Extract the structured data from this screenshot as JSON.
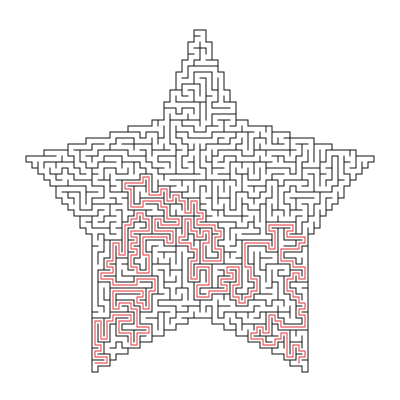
{
  "puzzle": {
    "type": "maze",
    "shape": "five-point star",
    "style": "orthogonal grid maze, black walls on white",
    "solution_shown": true
  },
  "colors": {
    "background": "#ffffff",
    "walls": "#111111",
    "solution_path": "#e8575a"
  }
}
